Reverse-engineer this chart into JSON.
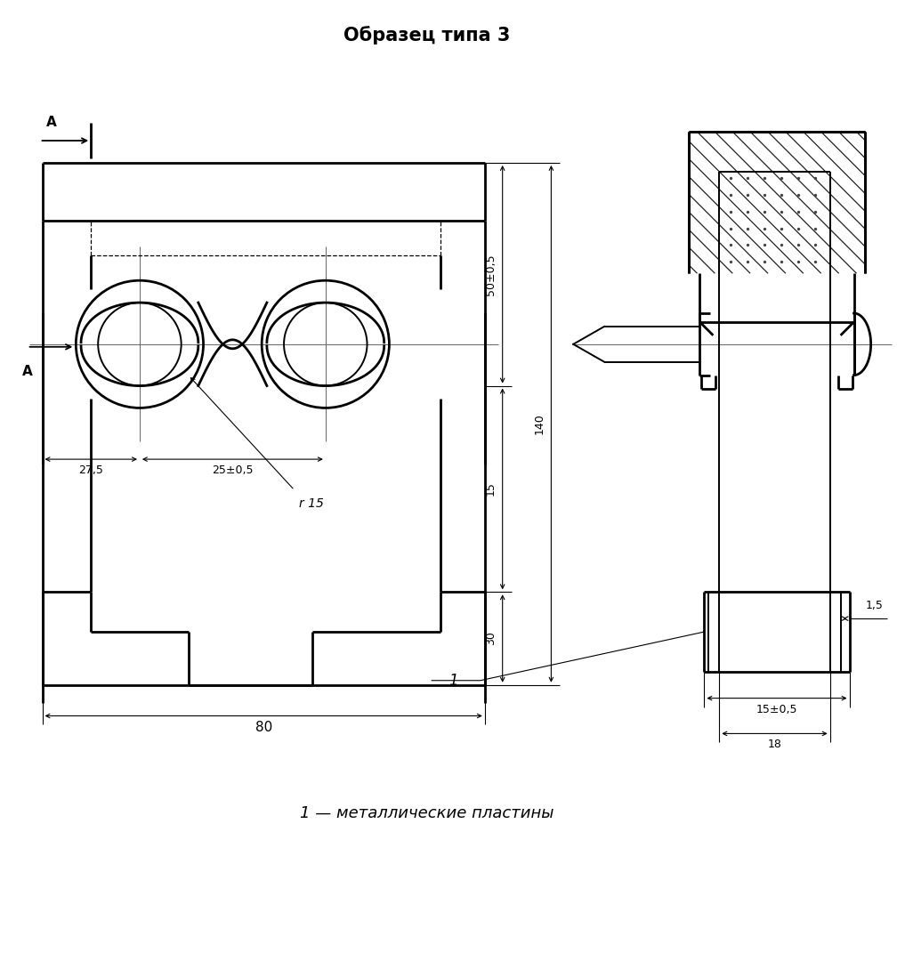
{
  "title": "Образец типа 3",
  "caption": "1 — металлические пластины",
  "bg_color": "#ffffff",
  "line_color": "#000000",
  "title_fontsize": 15,
  "caption_fontsize": 13
}
